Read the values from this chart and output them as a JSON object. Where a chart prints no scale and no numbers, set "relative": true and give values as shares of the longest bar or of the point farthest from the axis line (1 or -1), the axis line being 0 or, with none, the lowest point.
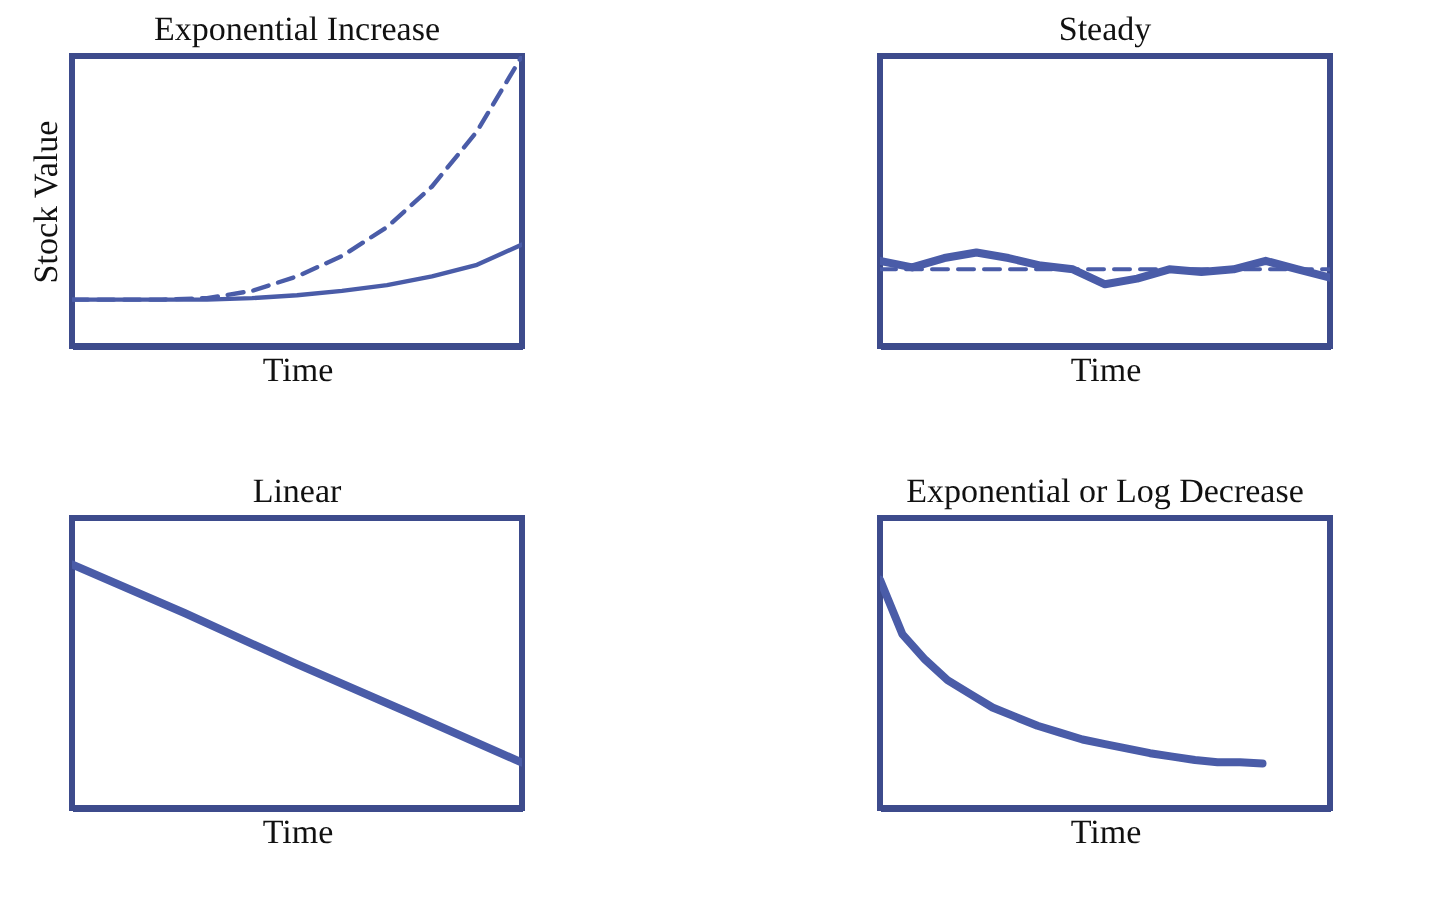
{
  "chart_data": [
    {
      "type": "line",
      "title": "Exponential Increase",
      "xlabel": "Time",
      "ylabel": "Stock Value",
      "relative": true,
      "grid": false,
      "legend": false,
      "tick_labels": false,
      "marker": "none",
      "categories": [
        null,
        null,
        null,
        null,
        null,
        null,
        null,
        null,
        null,
        null,
        null
      ],
      "series": [
        {
          "color": "#4a5ca8",
          "line_style": "dashed",
          "values": [
            0.16,
            0.16,
            0.16,
            0.165,
            0.19,
            0.24,
            0.31,
            0.41,
            0.55,
            0.74,
            1.0
          ]
        },
        {
          "color": "#4a5ca8",
          "line_style": "solid",
          "values": [
            0.16,
            0.16,
            0.16,
            0.16,
            0.165,
            0.175,
            0.19,
            0.21,
            0.24,
            0.28,
            0.35
          ]
        }
      ]
    },
    {
      "type": "line",
      "title": "Steady",
      "xlabel": "Time",
      "relative": true,
      "grid": false,
      "legend": false,
      "tick_labels": false,
      "marker": "none",
      "categories": [
        null,
        null,
        null,
        null,
        null,
        null,
        null,
        null,
        null,
        null,
        null,
        null,
        null,
        null,
        null
      ],
      "series": [
        {
          "color": "#4a5ca8",
          "line_style": "dashed",
          "values": [
            0.82,
            0.82,
            0.82,
            0.82,
            0.82,
            0.82,
            0.82,
            0.82,
            0.82,
            0.82,
            0.82,
            0.82,
            0.82,
            0.82,
            0.82
          ]
        },
        {
          "color": "#4a5ca8",
          "line_style": "solid",
          "values": [
            0.91,
            0.84,
            0.94,
            1.0,
            0.94,
            0.86,
            0.82,
            0.66,
            0.72,
            0.82,
            0.79,
            0.82,
            0.91,
            0.82,
            0.73
          ]
        }
      ]
    },
    {
      "type": "line",
      "title": "Linear",
      "xlabel": "Time",
      "relative": true,
      "grid": false,
      "legend": false,
      "tick_labels": false,
      "marker": "none",
      "categories": [
        null,
        null,
        null,
        null,
        null
      ],
      "series": [
        {
          "color": "#4a5ca8",
          "line_style": "solid",
          "values": [
            1.0,
            0.8,
            0.59,
            0.39,
            0.186
          ]
        }
      ]
    },
    {
      "type": "line",
      "title": "Exponential or Log Decrease",
      "xlabel": "Time",
      "relative": true,
      "grid": false,
      "legend": false,
      "tick_labels": false,
      "marker": "none",
      "categories": [
        null,
        null,
        null,
        null,
        null,
        null,
        null,
        null,
        null,
        null,
        null,
        null,
        null,
        null,
        null,
        null,
        null,
        null,
        null,
        null,
        null
      ],
      "series": [
        {
          "color": "#4a5ca8",
          "line_style": "solid",
          "values": [
            1.0,
            0.76,
            0.65,
            0.56,
            0.5,
            0.44,
            0.4,
            0.36,
            0.33,
            0.3,
            0.28,
            0.26,
            0.24,
            0.225,
            0.21,
            0.2,
            0.2,
            0.195,
            null,
            null,
            null
          ]
        }
      ]
    }
  ]
}
